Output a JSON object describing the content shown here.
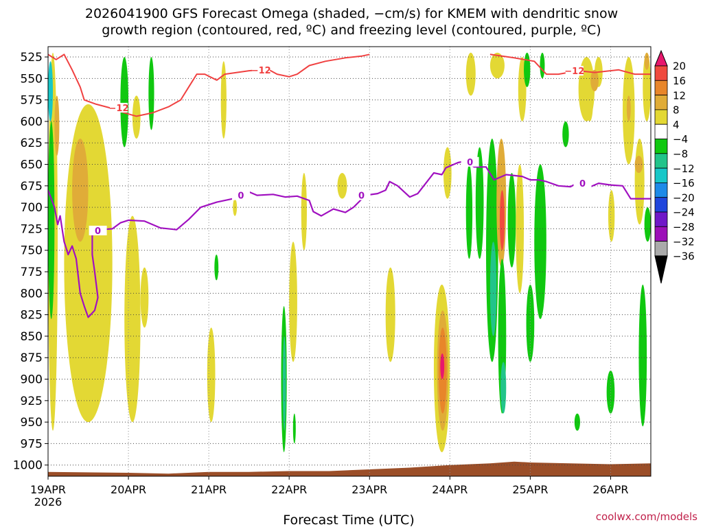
{
  "titles": {
    "line1": "2026041900 GFS Forecast Omega (shaded, −cm/s) for KMEM with dendritic snow",
    "line2": "growth region (contoured, red, ºC) and freezing level (contoured, purple, ºC)"
  },
  "credit": "coolwx.com/models",
  "chart_data": {
    "type": "heatmap",
    "xlabel": "Forecast Time (UTC)",
    "x_ticks": [
      "19APR",
      "20APR",
      "21APR",
      "22APR",
      "23APR",
      "24APR",
      "25APR",
      "26APR"
    ],
    "x_year": "2026",
    "x_range_days": [
      0,
      7.5
    ],
    "y_ticks": [
      525,
      550,
      575,
      600,
      625,
      650,
      675,
      700,
      725,
      750,
      775,
      800,
      825,
      850,
      875,
      900,
      925,
      950,
      975,
      1000
    ],
    "y_range_hpa": [
      1013,
      513
    ],
    "colorbar": {
      "labels": [
        "20",
        "16",
        "12",
        "8",
        "4",
        "−4",
        "−8",
        "−12",
        "−16",
        "−20",
        "−24",
        "−28",
        "−32",
        "−36"
      ],
      "bins": [
        {
          "range": [
            20,
            99
          ],
          "color": "#e8176d"
        },
        {
          "range": [
            16,
            20
          ],
          "color": "#f04a3e"
        },
        {
          "range": [
            12,
            16
          ],
          "color": "#e8862a"
        },
        {
          "range": [
            8,
            12
          ],
          "color": "#e0ac38"
        },
        {
          "range": [
            4,
            8
          ],
          "color": "#e3d834"
        },
        {
          "range": [
            -4,
            4
          ],
          "color": "#ffffff"
        },
        {
          "range": [
            -8,
            -4
          ],
          "color": "#10c810"
        },
        {
          "range": [
            -12,
            -8
          ],
          "color": "#22c48a"
        },
        {
          "range": [
            -16,
            -12
          ],
          "color": "#17c7c8"
        },
        {
          "range": [
            -20,
            -16
          ],
          "color": "#1d8ae8"
        },
        {
          "range": [
            -24,
            -20
          ],
          "color": "#2046dc"
        },
        {
          "range": [
            -28,
            -24
          ],
          "color": "#7018c8"
        },
        {
          "range": [
            -32,
            -28
          ],
          "color": "#9c10b8"
        },
        {
          "range": [
            -36,
            -32
          ],
          "color": "#aaaaaa"
        },
        {
          "range": [
            -99,
            -36
          ],
          "color": "#000000"
        }
      ]
    },
    "freezing_level": {
      "color": "#a010c0",
      "label": "0",
      "points": [
        [
          0,
          680
        ],
        [
          0.08,
          700
        ],
        [
          0.12,
          720
        ],
        [
          0.15,
          710
        ],
        [
          0.2,
          740
        ],
        [
          0.25,
          755
        ],
        [
          0.3,
          745
        ],
        [
          0.35,
          760
        ],
        [
          0.4,
          800
        ],
        [
          0.45,
          815
        ],
        [
          0.5,
          828
        ],
        [
          0.58,
          820
        ],
        [
          0.62,
          805
        ],
        [
          0.58,
          775
        ],
        [
          0.55,
          755
        ],
        [
          0.55,
          730
        ],
        [
          0.65,
          726
        ],
        [
          0.8,
          725
        ],
        [
          0.9,
          718
        ],
        [
          1.0,
          715
        ],
        [
          1.2,
          716
        ],
        [
          1.4,
          724
        ],
        [
          1.6,
          726
        ],
        [
          1.75,
          714
        ],
        [
          1.9,
          700
        ],
        [
          2.1,
          694
        ],
        [
          2.3,
          690
        ],
        [
          2.5,
          682
        ],
        [
          2.6,
          686
        ],
        [
          2.8,
          685
        ],
        [
          2.95,
          688
        ],
        [
          3.1,
          687
        ],
        [
          3.25,
          692
        ],
        [
          3.3,
          705
        ],
        [
          3.4,
          710
        ],
        [
          3.55,
          702
        ],
        [
          3.7,
          706
        ],
        [
          3.8,
          700
        ],
        [
          3.95,
          686
        ],
        [
          4.1,
          684
        ],
        [
          4.2,
          680
        ],
        [
          4.25,
          670
        ],
        [
          4.35,
          675
        ],
        [
          4.5,
          688
        ],
        [
          4.6,
          684
        ],
        [
          4.7,
          672
        ],
        [
          4.8,
          660
        ],
        [
          4.9,
          662
        ],
        [
          4.95,
          654
        ],
        [
          5.1,
          648
        ],
        [
          5.2,
          646
        ],
        [
          5.3,
          653
        ],
        [
          5.45,
          653
        ],
        [
          5.55,
          668
        ],
        [
          5.7,
          662
        ],
        [
          5.9,
          664
        ],
        [
          6.0,
          668
        ],
        [
          6.1,
          668
        ],
        [
          6.2,
          670
        ],
        [
          6.35,
          675
        ],
        [
          6.5,
          676
        ],
        [
          6.6,
          671
        ],
        [
          6.75,
          676
        ],
        [
          6.85,
          672
        ],
        [
          7.0,
          674
        ],
        [
          7.15,
          675
        ],
        [
          7.25,
          690
        ],
        [
          7.35,
          690
        ],
        [
          7.5,
          690
        ]
      ]
    },
    "dgz_minus12": {
      "color": "#f04040",
      "label": "−12",
      "contour_a": [
        [
          0.0,
          522
        ],
        [
          0.1,
          528
        ],
        [
          0.2,
          522
        ],
        [
          0.3,
          540
        ],
        [
          0.4,
          560
        ],
        [
          0.45,
          575
        ],
        [
          0.6,
          580
        ],
        [
          0.8,
          585
        ],
        [
          0.95,
          590
        ],
        [
          1.1,
          594
        ],
        [
          1.3,
          590
        ],
        [
          1.5,
          583
        ],
        [
          1.65,
          575
        ],
        [
          1.75,
          560
        ],
        [
          1.85,
          545
        ],
        [
          1.95,
          545
        ],
        [
          2.1,
          552
        ],
        [
          2.2,
          545
        ],
        [
          2.35,
          543
        ],
        [
          2.5,
          541
        ],
        [
          2.65,
          540
        ],
        [
          2.75,
          540
        ],
        [
          2.85,
          545
        ],
        [
          3.0,
          548
        ],
        [
          3.1,
          545
        ],
        [
          3.25,
          535
        ],
        [
          3.45,
          530
        ],
        [
          3.7,
          526
        ],
        [
          3.9,
          524
        ],
        [
          4.0,
          522
        ]
      ],
      "contour_b": [
        [
          5.5,
          522
        ],
        [
          5.8,
          526
        ],
        [
          6.05,
          530
        ],
        [
          6.2,
          545
        ],
        [
          6.35,
          545
        ],
        [
          6.6,
          541
        ],
        [
          6.8,
          543
        ],
        [
          7.1,
          540
        ],
        [
          7.3,
          545
        ],
        [
          7.5,
          545
        ]
      ]
    },
    "omega_regions": [
      {
        "v": 6,
        "t": [
          0.0,
          0.12
        ],
        "p": [
          520,
          960
        ]
      },
      {
        "v": 10,
        "t": [
          0.08,
          0.14
        ],
        "p": [
          570,
          640
        ]
      },
      {
        "v": -14,
        "t": [
          0.0,
          0.06
        ],
        "p": [
          530,
          600
        ]
      },
      {
        "v": -6,
        "t": [
          0.0,
          0.08
        ],
        "p": [
          600,
          830
        ]
      },
      {
        "v": 6,
        "t": [
          0.2,
          0.8
        ],
        "p": [
          580,
          950
        ]
      },
      {
        "v": 10,
        "t": [
          0.3,
          0.5
        ],
        "p": [
          620,
          740
        ]
      },
      {
        "v": 6,
        "t": [
          0.95,
          1.15
        ],
        "p": [
          710,
          950
        ]
      },
      {
        "v": 6,
        "t": [
          1.15,
          1.25
        ],
        "p": [
          770,
          840
        ]
      },
      {
        "v": -6,
        "t": [
          0.9,
          1.0
        ],
        "p": [
          525,
          630
        ]
      },
      {
        "v": -6,
        "t": [
          1.25,
          1.32
        ],
        "p": [
          525,
          610
        ]
      },
      {
        "v": 6,
        "t": [
          1.05,
          1.15
        ],
        "p": [
          570,
          620
        ]
      },
      {
        "v": 6,
        "t": [
          1.98,
          2.08
        ],
        "p": [
          840,
          950
        ]
      },
      {
        "v": 6,
        "t": [
          2.15,
          2.22
        ],
        "p": [
          530,
          620
        ]
      },
      {
        "v": -6,
        "t": [
          2.07,
          2.12
        ],
        "p": [
          755,
          785
        ]
      },
      {
        "v": 6,
        "t": [
          2.3,
          2.35
        ],
        "p": [
          690,
          710
        ]
      },
      {
        "v": -6,
        "t": [
          2.9,
          2.97
        ],
        "p": [
          815,
          985
        ]
      },
      {
        "v": -12,
        "t": [
          2.92,
          2.96
        ],
        "p": [
          850,
          960
        ]
      },
      {
        "v": -6,
        "t": [
          3.05,
          3.08
        ],
        "p": [
          940,
          975
        ]
      },
      {
        "v": 6,
        "t": [
          3.0,
          3.1
        ],
        "p": [
          740,
          880
        ]
      },
      {
        "v": 6,
        "t": [
          3.15,
          3.22
        ],
        "p": [
          660,
          750
        ]
      },
      {
        "v": 6,
        "t": [
          3.6,
          3.72
        ],
        "p": [
          660,
          690
        ]
      },
      {
        "v": 6,
        "t": [
          4.2,
          4.32
        ],
        "p": [
          770,
          880
        ]
      },
      {
        "v": 6,
        "t": [
          4.8,
          5.0
        ],
        "p": [
          790,
          985
        ]
      },
      {
        "v": 10,
        "t": [
          4.84,
          4.98
        ],
        "p": [
          820,
          960
        ]
      },
      {
        "v": 14,
        "t": [
          4.86,
          4.96
        ],
        "p": [
          840,
          940
        ]
      },
      {
        "v": 22,
        "t": [
          4.88,
          4.93
        ],
        "p": [
          870,
          900
        ]
      },
      {
        "v": 6,
        "t": [
          4.92,
          5.02
        ],
        "p": [
          630,
          690
        ]
      },
      {
        "v": 6,
        "t": [
          5.2,
          5.32
        ],
        "p": [
          520,
          570
        ]
      },
      {
        "v": -6,
        "t": [
          5.2,
          5.28
        ],
        "p": [
          650,
          760
        ]
      },
      {
        "v": -6,
        "t": [
          5.32,
          5.42
        ],
        "p": [
          630,
          760
        ]
      },
      {
        "v": -6,
        "t": [
          5.45,
          5.6
        ],
        "p": [
          620,
          880
        ]
      },
      {
        "v": -12,
        "t": [
          5.5,
          5.58
        ],
        "p": [
          740,
          850
        ]
      },
      {
        "v": 6,
        "t": [
          5.5,
          5.68
        ],
        "p": [
          520,
          550
        ]
      },
      {
        "v": 10,
        "t": [
          5.58,
          5.7
        ],
        "p": [
          620,
          770
        ]
      },
      {
        "v": 18,
        "t": [
          5.62,
          5.68
        ],
        "p": [
          680,
          750
        ]
      },
      {
        "v": -6,
        "t": [
          5.6,
          5.7
        ],
        "p": [
          760,
          940
        ]
      },
      {
        "v": -12,
        "t": [
          5.63,
          5.7
        ],
        "p": [
          880,
          940
        ]
      },
      {
        "v": -6,
        "t": [
          5.72,
          5.82
        ],
        "p": [
          660,
          770
        ]
      },
      {
        "v": 6,
        "t": [
          5.82,
          5.92
        ],
        "p": [
          650,
          800
        ]
      },
      {
        "v": 6,
        "t": [
          5.85,
          5.95
        ],
        "p": [
          525,
          600
        ]
      },
      {
        "v": -6,
        "t": [
          5.92,
          6.0
        ],
        "p": [
          520,
          560
        ]
      },
      {
        "v": -6,
        "t": [
          6.05,
          6.2
        ],
        "p": [
          650,
          830
        ]
      },
      {
        "v": -6,
        "t": [
          6.12,
          6.18
        ],
        "p": [
          520,
          550
        ]
      },
      {
        "v": -6,
        "t": [
          5.95,
          6.05
        ],
        "p": [
          790,
          880
        ]
      },
      {
        "v": -6,
        "t": [
          6.4,
          6.48
        ],
        "p": [
          600,
          630
        ]
      },
      {
        "v": 6,
        "t": [
          6.6,
          6.8
        ],
        "p": [
          525,
          600
        ]
      },
      {
        "v": 6,
        "t": [
          6.8,
          6.9
        ],
        "p": [
          525,
          560
        ]
      },
      {
        "v": 10,
        "t": [
          6.75,
          6.85
        ],
        "p": [
          540,
          565
        ]
      },
      {
        "v": 6,
        "t": [
          7.15,
          7.3
        ],
        "p": [
          525,
          650
        ]
      },
      {
        "v": 10,
        "t": [
          7.2,
          7.25
        ],
        "p": [
          570,
          600
        ]
      },
      {
        "v": 6,
        "t": [
          6.97,
          7.05
        ],
        "p": [
          680,
          740
        ]
      },
      {
        "v": 6,
        "t": [
          7.3,
          7.42
        ],
        "p": [
          620,
          720
        ]
      },
      {
        "v": 10,
        "t": [
          7.3,
          7.4
        ],
        "p": [
          640,
          660
        ]
      },
      {
        "v": 6,
        "t": [
          7.4,
          7.5
        ],
        "p": [
          520,
          600
        ]
      },
      {
        "v": 10,
        "t": [
          7.42,
          7.48
        ],
        "p": [
          520,
          540
        ]
      },
      {
        "v": -6,
        "t": [
          7.35,
          7.45
        ],
        "p": [
          790,
          955
        ]
      },
      {
        "v": -6,
        "t": [
          6.95,
          7.05
        ],
        "p": [
          890,
          940
        ]
      },
      {
        "v": -6,
        "t": [
          6.55,
          6.62
        ],
        "p": [
          940,
          960
        ]
      },
      {
        "v": -6,
        "t": [
          7.42,
          7.5
        ],
        "p": [
          700,
          740
        ]
      },
      {
        "v": 6,
        "t": [
          6.7,
          6.78
        ],
        "p": [
          560,
          600
        ]
      }
    ],
    "terrain": {
      "color": "#9b4e28",
      "surface_pressure": [
        [
          0,
          1008
        ],
        [
          1,
          1009
        ],
        [
          1.5,
          1010
        ],
        [
          2,
          1008
        ],
        [
          2.5,
          1008
        ],
        [
          3,
          1007
        ],
        [
          3.5,
          1007
        ],
        [
          4,
          1005
        ],
        [
          4.5,
          1003
        ],
        [
          5,
          1000
        ],
        [
          5.5,
          998
        ],
        [
          5.8,
          996
        ],
        [
          6,
          997
        ],
        [
          6.5,
          998
        ],
        [
          7,
          999
        ],
        [
          7.5,
          998
        ]
      ]
    }
  }
}
